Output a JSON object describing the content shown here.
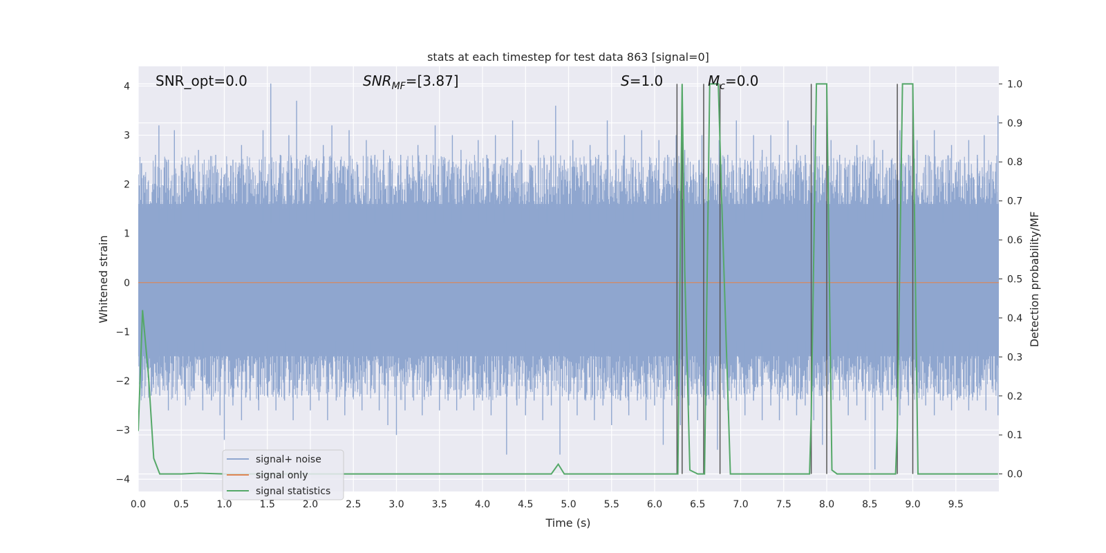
{
  "chart_data": {
    "type": "line",
    "title": "stats at each timestep for test data 863 [signal=0]",
    "xlabel": "Time (s)",
    "ylabel": "Whitened strain",
    "y2label": "Detection probability/MF",
    "xlim": [
      0.0,
      10.0
    ],
    "ylim": [
      -4.25,
      4.4
    ],
    "y2lim": [
      -0.045,
      1.045
    ],
    "xticks": [
      0.0,
      0.5,
      1.0,
      1.5,
      2.0,
      2.5,
      3.0,
      3.5,
      4.0,
      4.5,
      5.0,
      5.5,
      6.0,
      6.5,
      7.0,
      7.5,
      8.0,
      8.5,
      9.0,
      9.5
    ],
    "xtick_labels": [
      "0.0",
      "0.5",
      "1.0",
      "1.5",
      "2.0",
      "2.5",
      "3.0",
      "3.5",
      "4.0",
      "4.5",
      "5.0",
      "5.5",
      "6.0",
      "6.5",
      "7.0",
      "7.5",
      "8.0",
      "8.5",
      "9.0",
      "9.5"
    ],
    "yticks": [
      4,
      3,
      2,
      1,
      0,
      -1,
      -2,
      -3,
      -4
    ],
    "ytick_labels": [
      "4",
      "3",
      "2",
      "1",
      "0",
      "−1",
      "−2",
      "−3",
      "−4"
    ],
    "y2ticks": [
      1.0,
      0.9,
      0.8,
      0.7,
      0.6,
      0.5,
      0.4,
      0.3,
      0.2,
      0.1,
      0.0
    ],
    "y2tick_labels": [
      "1.0",
      "0.9",
      "0.8",
      "0.7",
      "0.6",
      "0.5",
      "0.4",
      "0.3",
      "0.2",
      "0.1",
      "0.0"
    ],
    "grid": true,
    "legend_position": "lower-left",
    "annotations": {
      "snr_opt": "SNR_opt=0.0",
      "snr_mf_main": "SNR",
      "snr_mf_sub": "MF",
      "snr_mf_value": "=[3.87]",
      "s_main": "S",
      "s_value": "=1.0",
      "mc_main": "M",
      "mc_sub": "c",
      "mc_value": "=0.0"
    },
    "series": [
      {
        "name": "signal+ noise",
        "color": "#8fa6cf",
        "axis": "left",
        "noise_peaks": [
          {
            "x": 0.0,
            "y": 2.2
          },
          {
            "x": 0.1,
            "y": 1.9
          },
          {
            "x": 0.2,
            "y": 2.6
          },
          {
            "x": 0.24,
            "y": 3.2
          },
          {
            "x": 0.35,
            "y": 2.5
          },
          {
            "x": 0.42,
            "y": 3.1
          },
          {
            "x": 0.5,
            "y": 2.4
          },
          {
            "x": 0.6,
            "y": 2.1
          },
          {
            "x": 0.7,
            "y": 2.7
          },
          {
            "x": 0.8,
            "y": 2.0
          },
          {
            "x": 0.9,
            "y": 2.6
          },
          {
            "x": 1.0,
            "y": 2.2
          },
          {
            "x": 1.1,
            "y": 2.5
          },
          {
            "x": 1.2,
            "y": 2.8
          },
          {
            "x": 1.3,
            "y": 2.3
          },
          {
            "x": 1.45,
            "y": 3.1
          },
          {
            "x": 1.54,
            "y": 4.05
          },
          {
            "x": 1.65,
            "y": 2.6
          },
          {
            "x": 1.75,
            "y": 3.0
          },
          {
            "x": 1.84,
            "y": 3.7
          },
          {
            "x": 1.95,
            "y": 2.6
          },
          {
            "x": 2.05,
            "y": 2.3
          },
          {
            "x": 2.15,
            "y": 2.8
          },
          {
            "x": 2.25,
            "y": 3.2
          },
          {
            "x": 2.35,
            "y": 2.5
          },
          {
            "x": 2.45,
            "y": 3.1
          },
          {
            "x": 2.55,
            "y": 2.4
          },
          {
            "x": 2.65,
            "y": 2.9
          },
          {
            "x": 2.75,
            "y": 2.6
          },
          {
            "x": 2.85,
            "y": 2.7
          },
          {
            "x": 2.95,
            "y": 2.3
          },
          {
            "x": 3.05,
            "y": 2.6
          },
          {
            "x": 3.15,
            "y": 2.2
          },
          {
            "x": 3.25,
            "y": 2.8
          },
          {
            "x": 3.35,
            "y": 2.6
          },
          {
            "x": 3.45,
            "y": 3.2
          },
          {
            "x": 3.55,
            "y": 2.5
          },
          {
            "x": 3.65,
            "y": 3.0
          },
          {
            "x": 3.75,
            "y": 2.7
          },
          {
            "x": 3.85,
            "y": 2.4
          },
          {
            "x": 3.95,
            "y": 2.9
          },
          {
            "x": 4.05,
            "y": 2.6
          },
          {
            "x": 4.15,
            "y": 3.0
          },
          {
            "x": 4.25,
            "y": 2.5
          },
          {
            "x": 4.35,
            "y": 3.3
          },
          {
            "x": 4.45,
            "y": 2.7
          },
          {
            "x": 4.55,
            "y": 2.3
          },
          {
            "x": 4.65,
            "y": 2.9
          },
          {
            "x": 4.75,
            "y": 2.4
          },
          {
            "x": 4.85,
            "y": 3.6
          },
          {
            "x": 4.95,
            "y": 2.5
          },
          {
            "x": 5.05,
            "y": 2.9
          },
          {
            "x": 5.15,
            "y": 2.4
          },
          {
            "x": 5.25,
            "y": 2.8
          },
          {
            "x": 5.35,
            "y": 2.6
          },
          {
            "x": 5.45,
            "y": 3.3
          },
          {
            "x": 5.55,
            "y": 2.7
          },
          {
            "x": 5.65,
            "y": 3.0
          },
          {
            "x": 5.75,
            "y": 2.5
          },
          {
            "x": 5.85,
            "y": 3.1
          },
          {
            "x": 5.95,
            "y": 2.4
          },
          {
            "x": 6.05,
            "y": 2.9
          },
          {
            "x": 6.15,
            "y": 2.6
          },
          {
            "x": 6.25,
            "y": 3.0
          },
          {
            "x": 6.35,
            "y": 2.7
          },
          {
            "x": 6.45,
            "y": 2.4
          },
          {
            "x": 6.55,
            "y": 3.0
          },
          {
            "x": 6.65,
            "y": 2.5
          },
          {
            "x": 6.75,
            "y": 2.9
          },
          {
            "x": 6.85,
            "y": 2.6
          },
          {
            "x": 6.95,
            "y": 3.3
          },
          {
            "x": 7.05,
            "y": 2.5
          },
          {
            "x": 7.15,
            "y": 3.0
          },
          {
            "x": 7.25,
            "y": 2.7
          },
          {
            "x": 7.35,
            "y": 3.0
          },
          {
            "x": 7.45,
            "y": 2.6
          },
          {
            "x": 7.55,
            "y": 3.3
          },
          {
            "x": 7.65,
            "y": 2.8
          },
          {
            "x": 7.75,
            "y": 2.6
          },
          {
            "x": 7.85,
            "y": 3.2
          },
          {
            "x": 7.95,
            "y": 2.4
          },
          {
            "x": 8.05,
            "y": 2.9
          },
          {
            "x": 8.15,
            "y": 2.6
          },
          {
            "x": 8.25,
            "y": 2.4
          },
          {
            "x": 8.35,
            "y": 2.8
          },
          {
            "x": 8.45,
            "y": 2.5
          },
          {
            "x": 8.55,
            "y": 2.9
          },
          {
            "x": 8.65,
            "y": 2.7
          },
          {
            "x": 8.75,
            "y": 2.5
          },
          {
            "x": 8.85,
            "y": 3.1
          },
          {
            "x": 8.95,
            "y": 2.6
          },
          {
            "x": 9.05,
            "y": 2.9
          },
          {
            "x": 9.15,
            "y": 2.6
          },
          {
            "x": 9.25,
            "y": 3.1
          },
          {
            "x": 9.35,
            "y": 2.5
          },
          {
            "x": 9.45,
            "y": 2.8
          },
          {
            "x": 9.55,
            "y": 2.5
          },
          {
            "x": 9.65,
            "y": 2.9
          },
          {
            "x": 9.75,
            "y": 2.6
          },
          {
            "x": 9.83,
            "y": 3.0
          },
          {
            "x": 9.9,
            "y": 2.4
          },
          {
            "x": 9.99,
            "y": 3.4
          }
        ],
        "noise_troughs": [
          {
            "x": 0.05,
            "y": -2.0
          },
          {
            "x": 0.15,
            "y": -2.3
          },
          {
            "x": 0.25,
            "y": -2.3
          },
          {
            "x": 0.35,
            "y": -2.6
          },
          {
            "x": 0.45,
            "y": -2.2
          },
          {
            "x": 0.55,
            "y": -2.5
          },
          {
            "x": 0.65,
            "y": -2.2
          },
          {
            "x": 0.75,
            "y": -2.6
          },
          {
            "x": 0.85,
            "y": -2.4
          },
          {
            "x": 0.95,
            "y": -2.7
          },
          {
            "x": 1.0,
            "y": -3.2
          },
          {
            "x": 1.1,
            "y": -2.5
          },
          {
            "x": 1.2,
            "y": -2.8
          },
          {
            "x": 1.3,
            "y": -2.4
          },
          {
            "x": 1.4,
            "y": -2.6
          },
          {
            "x": 1.5,
            "y": -2.3
          },
          {
            "x": 1.6,
            "y": -2.6
          },
          {
            "x": 1.7,
            "y": -2.4
          },
          {
            "x": 1.8,
            "y": -2.8
          },
          {
            "x": 1.9,
            "y": -2.3
          },
          {
            "x": 2.0,
            "y": -2.6
          },
          {
            "x": 2.1,
            "y": -2.4
          },
          {
            "x": 2.2,
            "y": -2.8
          },
          {
            "x": 2.3,
            "y": -2.4
          },
          {
            "x": 2.4,
            "y": -2.7
          },
          {
            "x": 2.5,
            "y": -2.3
          },
          {
            "x": 2.6,
            "y": -2.6
          },
          {
            "x": 2.7,
            "y": -2.2
          },
          {
            "x": 2.8,
            "y": -2.6
          },
          {
            "x": 2.9,
            "y": -2.9
          },
          {
            "x": 3.0,
            "y": -3.1
          },
          {
            "x": 3.1,
            "y": -2.6
          },
          {
            "x": 3.2,
            "y": -2.4
          },
          {
            "x": 3.3,
            "y": -2.7
          },
          {
            "x": 3.4,
            "y": -2.3
          },
          {
            "x": 3.5,
            "y": -2.6
          },
          {
            "x": 3.6,
            "y": -2.4
          },
          {
            "x": 3.7,
            "y": -2.6
          },
          {
            "x": 3.8,
            "y": -2.3
          },
          {
            "x": 3.9,
            "y": -2.6
          },
          {
            "x": 4.0,
            "y": -2.4
          },
          {
            "x": 4.1,
            "y": -2.7
          },
          {
            "x": 4.2,
            "y": -2.3
          },
          {
            "x": 4.28,
            "y": -3.5
          },
          {
            "x": 4.4,
            "y": -2.5
          },
          {
            "x": 4.5,
            "y": -2.7
          },
          {
            "x": 4.6,
            "y": -2.4
          },
          {
            "x": 4.7,
            "y": -2.8
          },
          {
            "x": 4.8,
            "y": -2.5
          },
          {
            "x": 4.9,
            "y": -3.5
          },
          {
            "x": 5.0,
            "y": -2.4
          },
          {
            "x": 5.1,
            "y": -2.7
          },
          {
            "x": 5.2,
            "y": -2.4
          },
          {
            "x": 5.3,
            "y": -2.8
          },
          {
            "x": 5.4,
            "y": -2.5
          },
          {
            "x": 5.5,
            "y": -2.9
          },
          {
            "x": 5.6,
            "y": -2.4
          },
          {
            "x": 5.7,
            "y": -2.7
          },
          {
            "x": 5.8,
            "y": -2.4
          },
          {
            "x": 5.9,
            "y": -2.8
          },
          {
            "x": 6.0,
            "y": -2.5
          },
          {
            "x": 6.1,
            "y": -3.3
          },
          {
            "x": 6.2,
            "y": -2.5
          },
          {
            "x": 6.3,
            "y": -2.9
          },
          {
            "x": 6.4,
            "y": -2.5
          },
          {
            "x": 6.5,
            "y": -2.8
          },
          {
            "x": 6.6,
            "y": -2.5
          },
          {
            "x": 6.73,
            "y": -3.4
          },
          {
            "x": 6.85,
            "y": -2.6
          },
          {
            "x": 6.95,
            "y": -2.4
          },
          {
            "x": 7.05,
            "y": -2.7
          },
          {
            "x": 7.15,
            "y": -2.4
          },
          {
            "x": 7.25,
            "y": -2.8
          },
          {
            "x": 7.35,
            "y": -2.5
          },
          {
            "x": 7.45,
            "y": -2.8
          },
          {
            "x": 7.55,
            "y": -2.4
          },
          {
            "x": 7.65,
            "y": -2.7
          },
          {
            "x": 7.75,
            "y": -2.5
          },
          {
            "x": 7.85,
            "y": -2.8
          },
          {
            "x": 7.95,
            "y": -3.3
          },
          {
            "x": 8.05,
            "y": -2.6
          },
          {
            "x": 8.15,
            "y": -2.4
          },
          {
            "x": 8.25,
            "y": -2.7
          },
          {
            "x": 8.35,
            "y": -2.5
          },
          {
            "x": 8.45,
            "y": -2.8
          },
          {
            "x": 8.56,
            "y": -3.8
          },
          {
            "x": 8.65,
            "y": -2.6
          },
          {
            "x": 8.75,
            "y": -2.4
          },
          {
            "x": 8.85,
            "y": -2.7
          },
          {
            "x": 8.95,
            "y": -2.5
          },
          {
            "x": 9.05,
            "y": -2.8
          },
          {
            "x": 9.15,
            "y": -2.5
          },
          {
            "x": 9.25,
            "y": -2.7
          },
          {
            "x": 9.35,
            "y": -2.4
          },
          {
            "x": 9.45,
            "y": -2.6
          },
          {
            "x": 9.55,
            "y": -2.3
          },
          {
            "x": 9.65,
            "y": -2.6
          },
          {
            "x": 9.75,
            "y": -2.4
          },
          {
            "x": 9.85,
            "y": -2.6
          },
          {
            "x": 9.99,
            "y": -2.7
          }
        ]
      },
      {
        "name": "signal only",
        "color": "#dd8452",
        "axis": "left",
        "x": [
          0.0,
          10.0
        ],
        "y": [
          0.0,
          0.0
        ]
      },
      {
        "name": "signal statistics",
        "color": "#55a868",
        "axis": "right",
        "x": [
          0.0,
          0.05,
          0.12,
          0.18,
          0.25,
          0.5,
          0.7,
          1.0,
          2.0,
          3.0,
          4.0,
          4.8,
          4.88,
          4.95,
          5.5,
          6.25,
          6.27,
          6.32,
          6.35,
          6.41,
          6.5,
          6.56,
          6.58,
          6.64,
          6.74,
          6.78,
          6.88,
          7.0,
          7.5,
          7.8,
          7.82,
          7.88,
          8.0,
          8.06,
          8.12,
          8.5,
          8.8,
          8.82,
          8.88,
          9.0,
          9.06,
          9.5,
          9.99
        ],
        "y": [
          0.11,
          0.42,
          0.25,
          0.04,
          0.0,
          0.0,
          0.002,
          0.0,
          0.0,
          0.0,
          0.0,
          0.0,
          0.025,
          0.0,
          0.0,
          0.0,
          0.0,
          1.0,
          0.52,
          0.01,
          0.0,
          0.0,
          0.0,
          1.0,
          1.0,
          0.7,
          0.0,
          0.0,
          0.0,
          0.0,
          0.15,
          1.0,
          1.0,
          0.01,
          0.0,
          0.0,
          0.0,
          0.12,
          1.0,
          1.0,
          0.0,
          0.0,
          0.0
        ]
      }
    ],
    "detection_markers": {
      "color": "#555555",
      "x": [
        6.26,
        6.32,
        6.57,
        6.76,
        7.82,
        8.0,
        8.82,
        9.0
      ],
      "top": 1.0,
      "bottom": 0.0
    }
  }
}
